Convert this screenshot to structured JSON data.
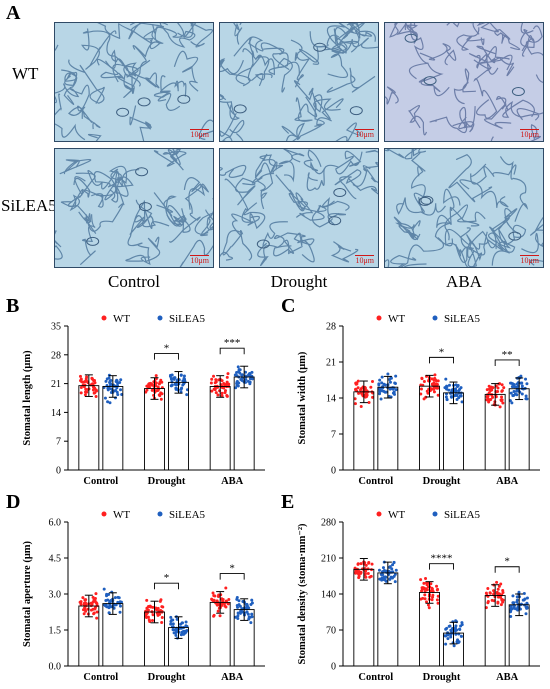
{
  "panel_a": {
    "letter": "A",
    "row_labels": [
      "WT",
      "SiLEA5"
    ],
    "column_labels": [
      "Control",
      "Drought",
      "ABA"
    ],
    "scale_bar": "10μm"
  },
  "colors": {
    "wt": "#ff2020",
    "silea5": "#1f5fbf"
  },
  "chart_data": [
    {
      "panel": "B",
      "type": "bar",
      "categories": [
        "Control",
        "Drought",
        "ABA"
      ],
      "series": [
        {
          "name": "WT",
          "values": [
            20.5,
            19.8,
            20.3
          ]
        },
        {
          "name": "SiLEA5",
          "values": [
            20.3,
            21.3,
            22.6
          ]
        }
      ],
      "ylabel": "Stomatal length (μm)",
      "ylim": [
        0,
        35
      ],
      "yticks": [
        "0",
        "7",
        "14",
        "21",
        "28",
        "35"
      ],
      "significance": [
        "",
        "*",
        "***"
      ],
      "legend": "top"
    },
    {
      "panel": "C",
      "type": "bar",
      "categories": [
        "Control",
        "Drought",
        "ABA"
      ],
      "series": [
        {
          "name": "WT",
          "values": [
            15.2,
            16.3,
            14.7
          ]
        },
        {
          "name": "SiLEA5",
          "values": [
            16.1,
            15.0,
            15.8
          ]
        }
      ],
      "ylabel": "Stomatal width (μm)",
      "ylim": [
        0,
        28
      ],
      "yticks": [
        "0",
        "7",
        "14",
        "21",
        "28"
      ],
      "significance": [
        "",
        "*",
        "**"
      ],
      "legend": "top"
    },
    {
      "panel": "D",
      "type": "bar",
      "categories": [
        "Control",
        "Drought",
        "ABA"
      ],
      "series": [
        {
          "name": "WT",
          "values": [
            2.5,
            2.25,
            2.65
          ]
        },
        {
          "name": "SiLEA5",
          "values": [
            2.6,
            1.6,
            2.35
          ]
        }
      ],
      "ylabel": "Stomatal aperture (μm)",
      "ylim": [
        0,
        6
      ],
      "yticks": [
        "0.0",
        "1.5",
        "3.0",
        "4.5",
        "6.0"
      ],
      "significance": [
        "",
        "*",
        "*"
      ],
      "legend": "top"
    },
    {
      "panel": "E",
      "type": "bar",
      "categories": [
        "Control",
        "Drought",
        "ABA"
      ],
      "series": [
        {
          "name": "WT",
          "values": [
            188,
            143,
            137
          ]
        },
        {
          "name": "SiLEA5",
          "values": [
            181,
            64,
            119
          ]
        }
      ],
      "ylabel": "Stomatal density (stoma·mm⁻²)",
      "ylim": [
        0,
        280
      ],
      "yticks": [
        "0",
        "70",
        "140",
        "210",
        "280"
      ],
      "significance": [
        "",
        "****",
        "*"
      ],
      "legend": "top"
    }
  ]
}
